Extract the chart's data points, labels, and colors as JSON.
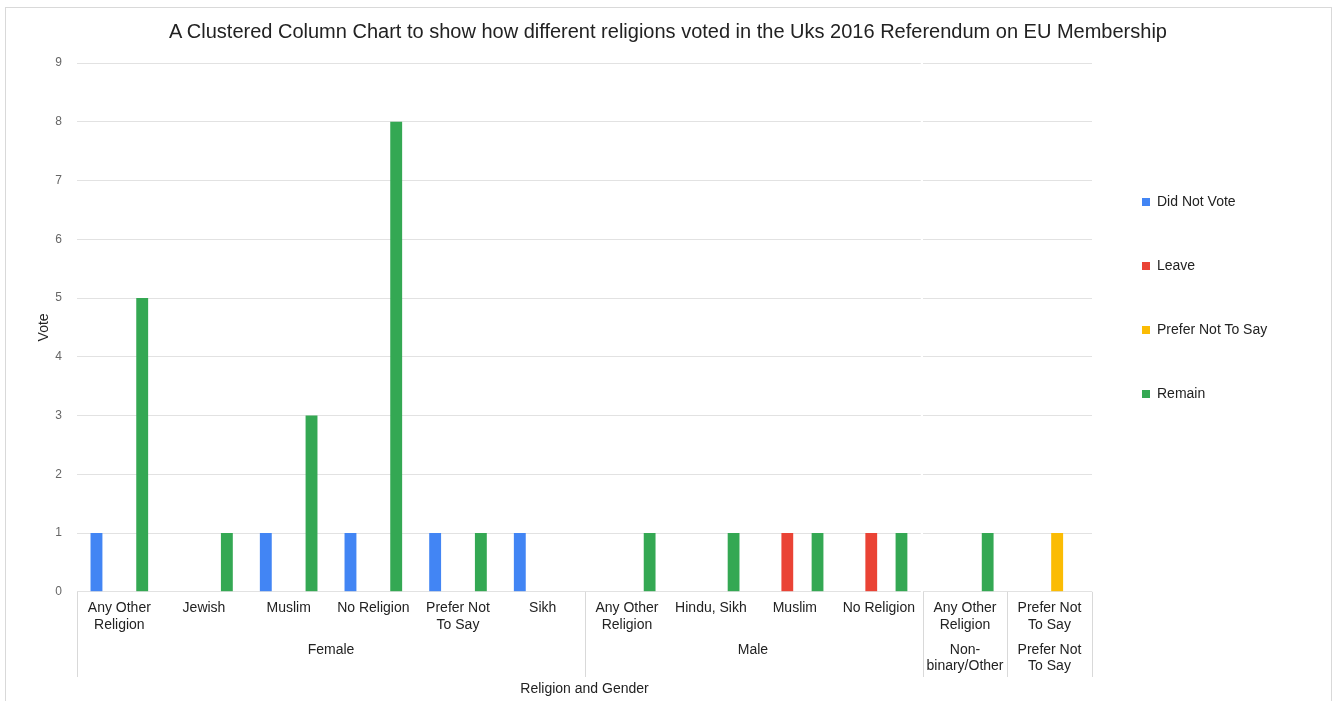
{
  "chart_data": [
    {
      "type": "bar",
      "title": "A Clustered Column Chart to show how different religions voted in the Uks 2016 Referendum on EU Membership",
      "ylabel": "Vote",
      "xlabel": "Female",
      "annotations": [
        "Religion and Gender"
      ],
      "categories": [
        "Any Other Religion",
        "Jewish",
        "Muslim",
        "No Religion",
        "Prefer Not To Say",
        "Sikh"
      ],
      "series": [
        {
          "color": "#4285f4",
          "values": [
            1,
            null,
            1,
            1,
            1,
            1
          ]
        },
        {
          "color": "#ea4335",
          "values": [
            null,
            null,
            null,
            null,
            null,
            null
          ]
        },
        {
          "color": "#fbbc04",
          "values": [
            null,
            null,
            null,
            null,
            null,
            null
          ]
        },
        {
          "color": "#34a853",
          "values": [
            5,
            1,
            3,
            8,
            1,
            null
          ]
        }
      ],
      "ylim": [
        0,
        9
      ],
      "yticks": [
        0,
        1,
        2,
        3,
        4,
        5,
        6,
        7,
        8,
        9
      ],
      "grid": "y"
    },
    {
      "type": "bar",
      "xlabel": "Male",
      "categories": [
        "Any Other Religion",
        "Hindu, Sikh",
        "Muslim",
        "No Religion"
      ],
      "series": [
        {
          "color": "#4285f4",
          "values": [
            null,
            null,
            null,
            null
          ]
        },
        {
          "color": "#ea4335",
          "values": [
            null,
            null,
            1,
            1
          ]
        },
        {
          "color": "#fbbc04",
          "values": [
            null,
            null,
            null,
            null
          ]
        },
        {
          "color": "#34a853",
          "values": [
            1,
            1,
            1,
            1
          ]
        }
      ],
      "ylim": [
        0,
        9
      ],
      "yticks": [
        0,
        1,
        2,
        3,
        4,
        5,
        6,
        7,
        8,
        9
      ],
      "grid": "y",
      "tick_labels": "x"
    },
    {
      "type": "bar",
      "xlabel": "Non-binary/Other",
      "categories": [
        "Any Other Religion"
      ],
      "series": [
        {
          "color": "#4285f4",
          "values": [
            null
          ]
        },
        {
          "color": "#ea4335",
          "values": [
            null
          ]
        },
        {
          "color": "#fbbc04",
          "values": [
            null
          ]
        },
        {
          "color": "#34a853",
          "values": [
            1
          ]
        }
      ],
      "ylim": [
        0,
        9
      ],
      "yticks": [
        0,
        1,
        2,
        3,
        4,
        5,
        6,
        7,
        8,
        9
      ],
      "grid": "y",
      "tick_labels": "x"
    },
    {
      "type": "bar",
      "xlabel": "Prefer Not To Say",
      "categories": [
        "Prefer Not To Say"
      ],
      "series": [
        {
          "name": "Did Not Vote",
          "color": "#4285f4",
          "values": [
            null
          ]
        },
        {
          "name": "Leave",
          "color": "#ea4335",
          "values": [
            null
          ]
        },
        {
          "name": "Prefer Not To Say",
          "color": "#fbbc04",
          "values": [
            1
          ]
        },
        {
          "name": "Remain",
          "color": "#34a853",
          "values": [
            null
          ]
        }
      ],
      "ylim": [
        0,
        9
      ],
      "yticks": [
        0,
        1,
        2,
        3,
        4,
        5,
        6,
        7,
        8,
        9
      ],
      "grid": "y",
      "tick_labels": "x",
      "legend": "right"
    }
  ]
}
